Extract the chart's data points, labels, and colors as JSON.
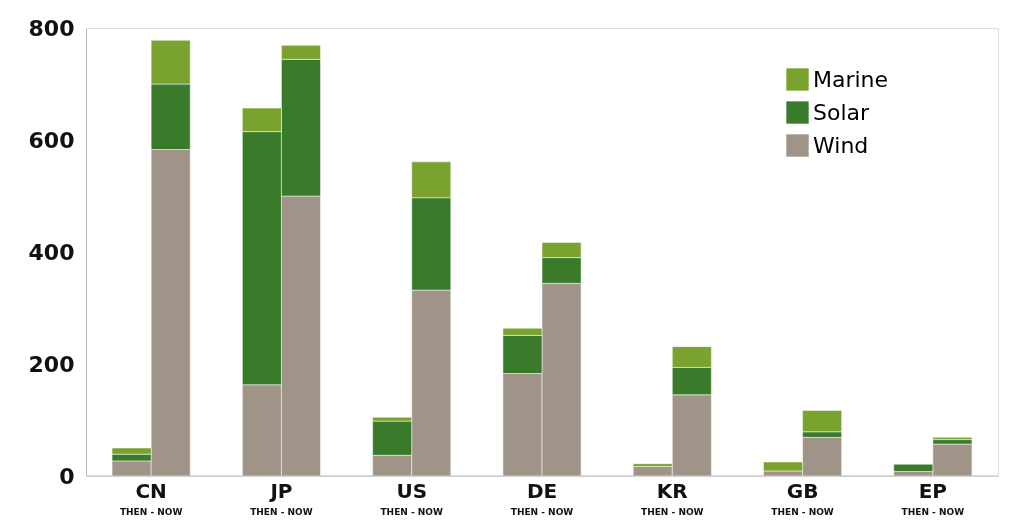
{
  "chart_data": {
    "type": "bar",
    "stacked": true,
    "categories": [
      null,
      null,
      null,
      null,
      null,
      null,
      null,
      null,
      null,
      null,
      null,
      null,
      null,
      null
    ],
    "series": [
      {
        "name": "Wind",
        "color": "#a09488",
        "values": [
          27,
          583,
          163,
          500,
          37,
          332,
          183,
          344,
          17,
          145,
          9,
          69,
          8,
          57
        ]
      },
      {
        "name": "Solar",
        "color": "#3a7b2b",
        "values": [
          12,
          117,
          452,
          244,
          61,
          165,
          68,
          46,
          0,
          49,
          0,
          10,
          13,
          8
        ]
      },
      {
        "name": "Marine",
        "color": "#7aa22f",
        "values": [
          11,
          78,
          42,
          25,
          7,
          64,
          13,
          27,
          5,
          37,
          16,
          38,
          0,
          4
        ]
      }
    ],
    "annotations": [
      "CN",
      "JP",
      "US",
      "DE",
      "KR",
      "GB",
      "EP",
      "THEN - NOW",
      "THEN - NOW",
      "THEN - NOW",
      "THEN - NOW",
      "THEN - NOW",
      "THEN - NOW",
      "THEN - NOW"
    ],
    "ylim": [
      0,
      800
    ],
    "yticks": [
      0,
      200,
      400,
      600,
      800
    ],
    "grid": false,
    "legend": "top right"
  }
}
